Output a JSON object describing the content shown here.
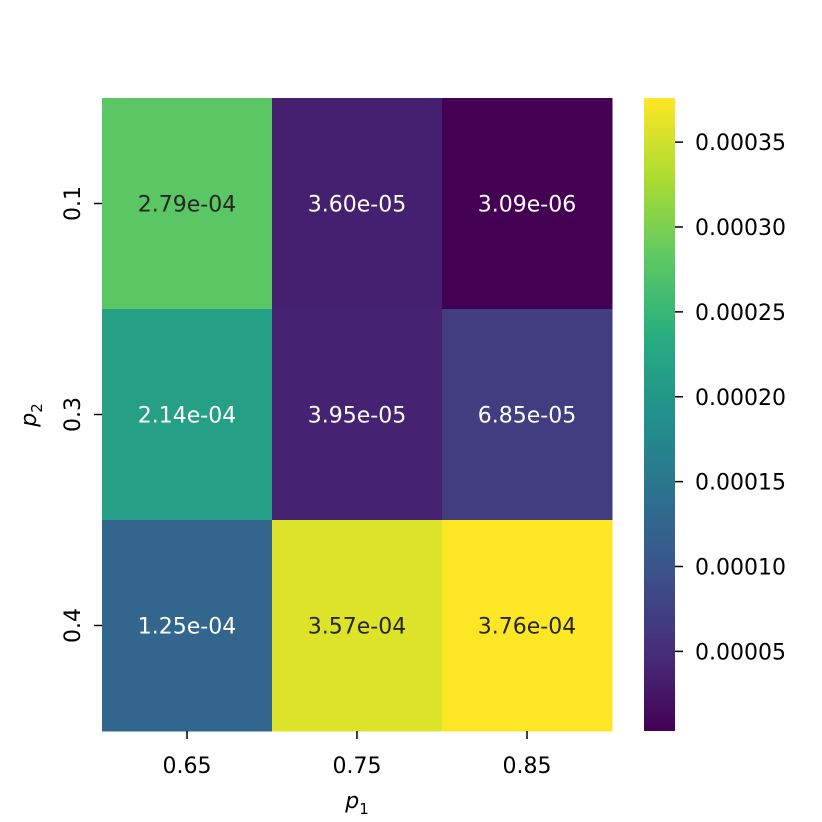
{
  "chart_data": {
    "type": "heatmap",
    "title": "",
    "xlabel": "p_1",
    "ylabel": "p_2",
    "x_categories": [
      "0.65",
      "0.75",
      "0.85"
    ],
    "y_categories": [
      "0.1",
      "0.3",
      "0.4"
    ],
    "values": [
      [
        0.000279,
        3.6e-05,
        3.09e-06
      ],
      [
        0.000214,
        3.95e-05,
        6.85e-05
      ],
      [
        0.000125,
        0.000357,
        0.000376
      ]
    ],
    "cell_labels": [
      [
        "2.79e-04",
        "3.60e-05",
        "3.09e-06"
      ],
      [
        "2.14e-04",
        "3.95e-05",
        "6.85e-05"
      ],
      [
        "1.25e-04",
        "3.57e-04",
        "3.76e-04"
      ]
    ],
    "colormap": "viridis",
    "vmin": 3.09e-06,
    "vmax": 0.000376,
    "colorbar": {
      "ticks": [
        5e-05,
        0.0001,
        0.00015,
        0.0002,
        0.00025,
        0.0003,
        0.00035
      ],
      "tick_labels": [
        "0.00005",
        "0.00010",
        "0.00015",
        "0.00020",
        "0.00025",
        "0.00030",
        "0.00035"
      ],
      "placement": "right"
    },
    "grid": false,
    "legend": "none"
  }
}
